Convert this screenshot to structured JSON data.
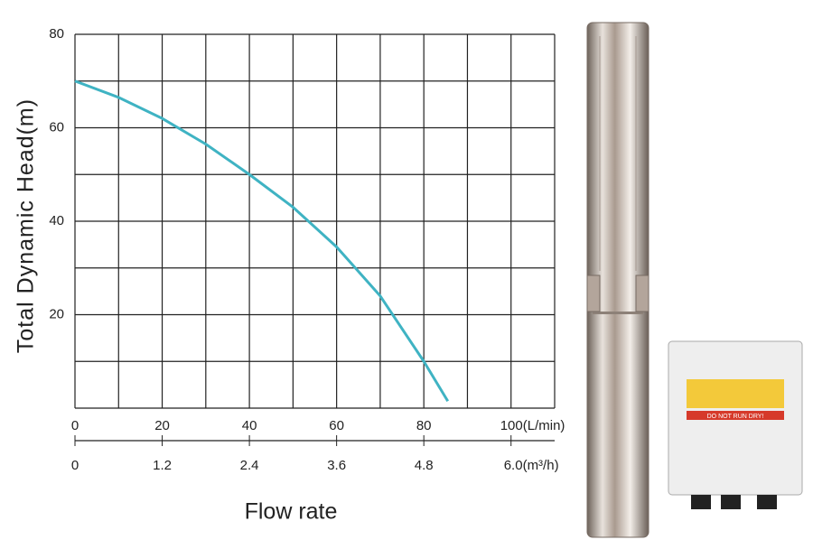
{
  "chart_data": {
    "type": "line",
    "ylabel": "Total Dynamic Head(m)",
    "xlabel": "Flow rate",
    "x": [
      0,
      10,
      20,
      30,
      40,
      50,
      60,
      70,
      80,
      85.5
    ],
    "values": [
      70,
      66.5,
      62,
      56.5,
      50,
      43,
      34.5,
      24,
      10,
      1.5
    ],
    "color": "#3fb3c3",
    "xlim": [
      0,
      110
    ],
    "xticks": [
      0,
      20,
      40,
      60,
      80,
      {
        "value": 100,
        "label": "100(L/min)"
      }
    ],
    "x2lim": [
      0,
      6.6
    ],
    "x2ticks": [
      0,
      1.2,
      2.4,
      3.6,
      4.8,
      {
        "value": 6,
        "label": "6.0(m³/h)"
      }
    ],
    "ylim": [
      0,
      80
    ],
    "yticks": [
      20,
      40,
      60,
      80
    ],
    "x_grid_lines": [
      0,
      10,
      20,
      30,
      40,
      50,
      60,
      70,
      80,
      90,
      100,
      110
    ],
    "y_grid_lines": [
      0,
      10,
      20,
      30,
      40,
      50,
      60,
      70,
      80
    ],
    "controller_label": "DO NOT RUN DRY!"
  }
}
